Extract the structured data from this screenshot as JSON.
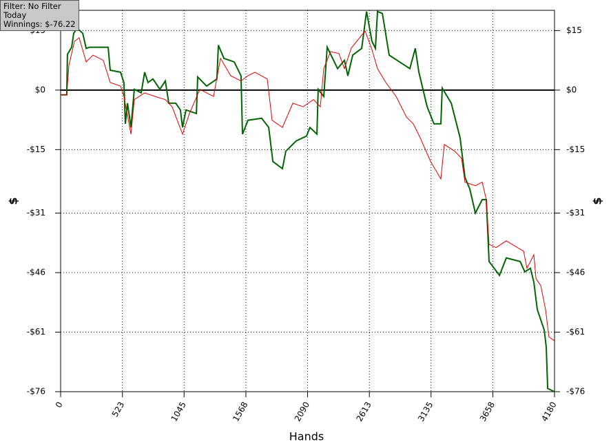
{
  "chart_data": {
    "type": "line",
    "annotations": [
      "Filter: No Filter",
      "Today",
      "Winnings: $-76.22"
    ],
    "xlabel": "Hands",
    "ylabel": "$",
    "xlim": [
      0,
      4180
    ],
    "xticks": [
      0,
      523,
      1045,
      1568,
      2090,
      2613,
      3135,
      3658,
      4180
    ],
    "ylim": [
      -76,
      20.1
    ],
    "yticks": [
      {
        "value": 15,
        "label": "$15"
      },
      {
        "value": 0,
        "label": "$0"
      },
      {
        "value": -15,
        "label": "-$15"
      },
      {
        "value": -31,
        "label": "-$31"
      },
      {
        "value": -46,
        "label": "-$46"
      },
      {
        "value": -61,
        "label": "-$61"
      },
      {
        "value": -76,
        "label": "-$76"
      }
    ],
    "grid": true,
    "series": [
      {
        "color": "#006400",
        "x": [
          0,
          52,
          58,
          93,
          111,
          140,
          187,
          216,
          245,
          402,
          420,
          507,
          536,
          548,
          566,
          595,
          624,
          682,
          711,
          740,
          781,
          840,
          886,
          915,
          974,
          1014,
          1032,
          1061,
          1149,
          1160,
          1236,
          1323,
          1335,
          1382,
          1469,
          1527,
          1539,
          1586,
          1702,
          1761,
          1796,
          1877,
          1906,
          1994,
          2081,
          2110,
          2169,
          2180,
          2227,
          2256,
          2344,
          2402,
          2431,
          2472,
          2548,
          2589,
          2635,
          2664,
          2682,
          2723,
          2781,
          2868,
          2956,
          3002,
          3032,
          3102,
          3160,
          3218,
          3230,
          3306,
          3381,
          3422,
          3463,
          3510,
          3568,
          3603,
          3626,
          3714,
          3772,
          3889,
          3929,
          3976,
          4005,
          4034,
          4093,
          4110,
          4122,
          4180
        ],
        "values": [
          -1.2,
          -1.2,
          9.0,
          10.8,
          14.3,
          15.6,
          14.3,
          10.5,
          10.8,
          10.8,
          5.0,
          4.5,
          1.9,
          -8.5,
          -3.3,
          -9.4,
          0.2,
          -0.7,
          4.5,
          1.9,
          2.8,
          0.2,
          2.3,
          -3.3,
          -3.3,
          -5.0,
          -9.4,
          -5.0,
          -5.9,
          3.3,
          1.0,
          2.8,
          11.3,
          8.0,
          7.1,
          3.6,
          -11.1,
          -7.6,
          -7.1,
          -9.4,
          -18.0,
          -19.8,
          -15.4,
          -12.8,
          -11.6,
          -9.4,
          -11.1,
          0.2,
          -1.6,
          10.8,
          5.4,
          7.5,
          3.6,
          8.8,
          10.5,
          19.8,
          12.3,
          10.5,
          19.8,
          19.3,
          8.8,
          7.1,
          5.4,
          10.5,
          4.5,
          -4.2,
          -8.5,
          -8.5,
          0.5,
          -3.3,
          -12.0,
          -22.0,
          -24.9,
          -31.0,
          -27.6,
          -27.6,
          -43.2,
          -46.7,
          -42.3,
          -43.2,
          -45.8,
          -44.9,
          -48.4,
          -55.3,
          -60.5,
          -64.8,
          -75.2,
          -76.0
        ]
      },
      {
        "color": "#e00000",
        "x": [
          0,
          52,
          70,
          117,
          157,
          216,
          274,
          361,
          420,
          507,
          536,
          595,
          624,
          711,
          799,
          886,
          944,
          1032,
          1090,
          1178,
          1236,
          1294,
          1353,
          1440,
          1527,
          1586,
          1644,
          1749,
          1790,
          1877,
          1965,
          2052,
          2140,
          2198,
          2227,
          2285,
          2355,
          2402,
          2460,
          2577,
          2635,
          2682,
          2752,
          2839,
          2927,
          2985,
          3043,
          3131,
          3218,
          3247,
          3335,
          3393,
          3422,
          3510,
          3568,
          3603,
          3626,
          3685,
          3772,
          3918,
          3947,
          4005,
          4023,
          4064,
          4104,
          4133,
          4180
        ],
        "values": [
          -1.2,
          -1.2,
          6.2,
          12.3,
          13.2,
          7.1,
          8.8,
          7.5,
          1.9,
          1.0,
          -1.6,
          -11.1,
          -2.4,
          -0.7,
          -1.6,
          -2.4,
          -4.2,
          -11.1,
          -5.9,
          0.2,
          -0.7,
          -1.6,
          8.0,
          3.6,
          2.3,
          3.6,
          4.5,
          2.8,
          -7.6,
          -9.4,
          -3.3,
          -4.2,
          -2.4,
          -4.2,
          5.4,
          9.7,
          9.2,
          5.4,
          10.6,
          14.9,
          10.2,
          5.4,
          1.9,
          -1.6,
          -6.8,
          -8.5,
          -12.0,
          -18.0,
          -22.4,
          -13.7,
          -15.4,
          -17.2,
          -23.2,
          -24.1,
          -23.2,
          -27.6,
          -38.9,
          -39.7,
          -38.0,
          -40.6,
          -44.9,
          -41.5,
          -47.5,
          -49.3,
          -55.3,
          -62.2,
          -63.2
        ]
      }
    ]
  }
}
